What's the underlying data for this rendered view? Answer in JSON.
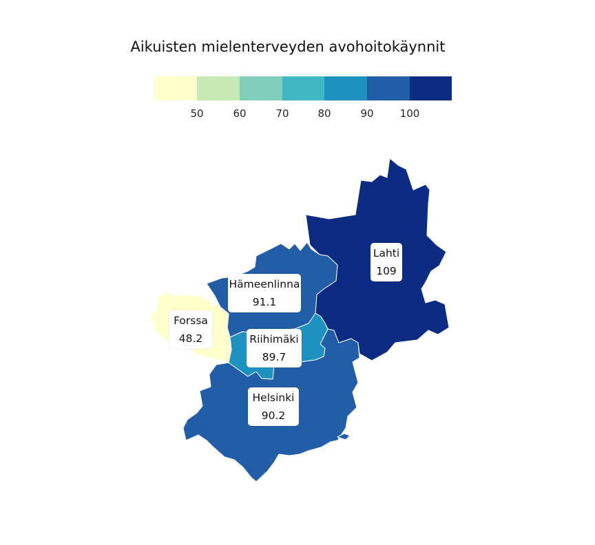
{
  "map": {
    "title": "Aikuisten mielenterveyden avohoitokäynnit"
  },
  "legend": {
    "bins": [
      {
        "color": "#ffffcc"
      },
      {
        "color": "#c7e9b4"
      },
      {
        "color": "#7fcdbb"
      },
      {
        "color": "#41b6c4"
      },
      {
        "color": "#1d91c0"
      },
      {
        "color": "#225ea8"
      },
      {
        "color": "#0c2c84"
      }
    ],
    "ticks": [
      "50",
      "60",
      "70",
      "80",
      "90",
      "100"
    ]
  },
  "regions": [
    {
      "name": "Lahti",
      "value": "109",
      "color": "#0c2c84"
    },
    {
      "name": "Hämeenlinna",
      "value": "91.1",
      "color": "#225ea8"
    },
    {
      "name": "Forssa",
      "value": "48.2",
      "color": "#ffffcc"
    },
    {
      "name": "Riihimäki",
      "value": "89.7",
      "color": "#1d91c0"
    },
    {
      "name": "Helsinki",
      "value": "90.2",
      "color": "#225ea8"
    }
  ]
}
